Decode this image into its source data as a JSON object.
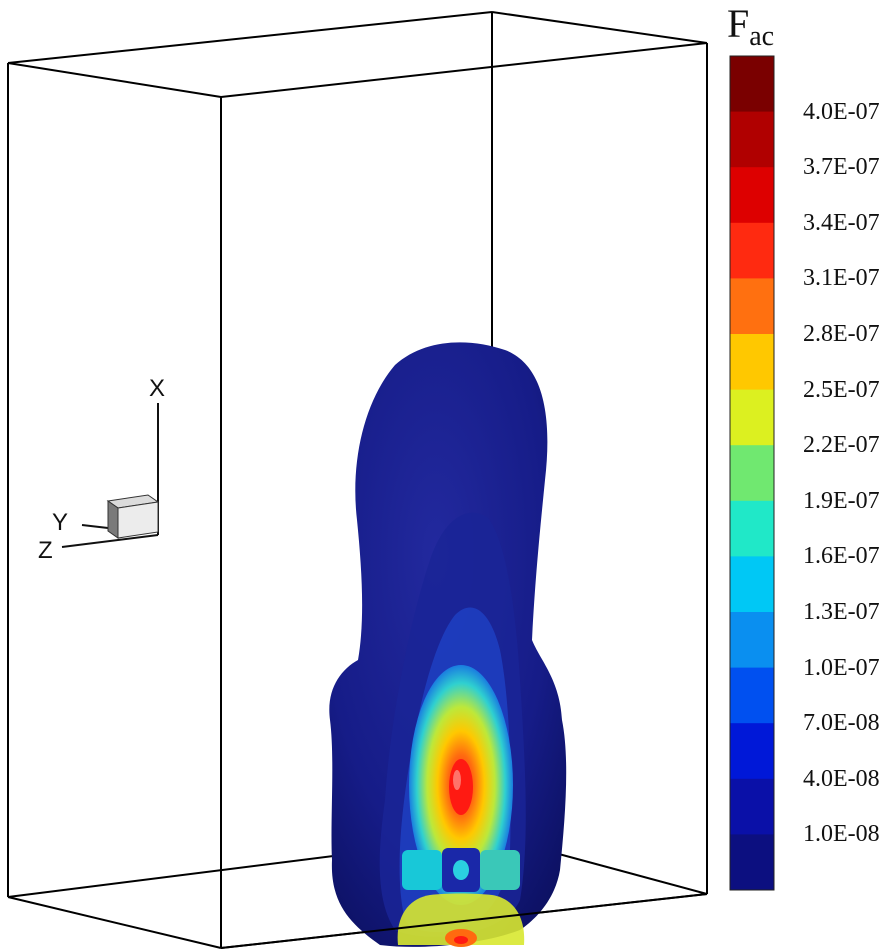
{
  "legend": {
    "title_main": "F",
    "title_sub": "ac",
    "labels": [
      "4.0E-07",
      "3.7E-07",
      "3.4E-07",
      "3.1E-07",
      "2.8E-07",
      "2.5E-07",
      "2.2E-07",
      "1.9E-07",
      "1.6E-07",
      "1.3E-07",
      "1.0E-07",
      "7.0E-08",
      "4.0E-08",
      "1.0E-08"
    ],
    "colors": [
      "#7a0000",
      "#b00000",
      "#dd0000",
      "#ff2a10",
      "#ff7010",
      "#ffc800",
      "#dcf020",
      "#70e870",
      "#20e8c8",
      "#00c8f5",
      "#0a8ff0",
      "#0050f0",
      "#0018d8",
      "#0a10a8",
      "#0c0f80"
    ]
  },
  "axes_triad": {
    "x": "X",
    "y": "Y",
    "z": "Z"
  },
  "colors": {
    "plume_background": "#141a86",
    "frame": "#000000"
  }
}
